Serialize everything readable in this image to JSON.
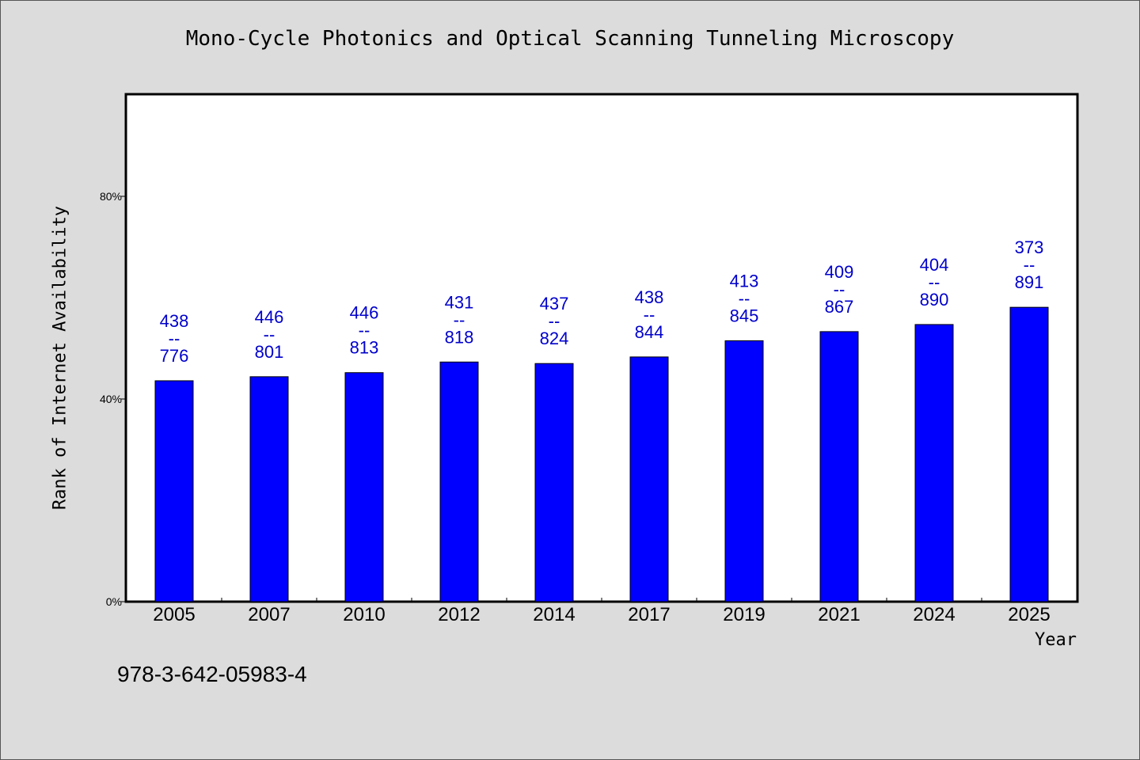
{
  "figure": {
    "title": "Mono-Cycle Photonics and Optical Scanning Tunneling Microscopy",
    "footer_text": "978-3-642-05983-4"
  },
  "chart_data": {
    "type": "bar",
    "title": "Mono-Cycle Photonics and Optical Scanning Tunneling Microscopy",
    "xlabel": "Year",
    "ylabel": "Rank of Internet Availability",
    "categories": [
      "2005",
      "2007",
      "2010",
      "2012",
      "2014",
      "2017",
      "2019",
      "2021",
      "2024",
      "2025"
    ],
    "values": [
      43.6,
      44.4,
      45.2,
      47.3,
      47.0,
      48.3,
      51.5,
      53.3,
      54.7,
      58.1
    ],
    "data_labels": [
      [
        "438",
        "--",
        "776"
      ],
      [
        "446",
        "--",
        "801"
      ],
      [
        "446",
        "--",
        "813"
      ],
      [
        "431",
        "--",
        "818"
      ],
      [
        "437",
        "--",
        "824"
      ],
      [
        "438",
        "--",
        "844"
      ],
      [
        "413",
        "--",
        "845"
      ],
      [
        "409",
        "--",
        "867"
      ],
      [
        "404",
        "--",
        "890"
      ],
      [
        "373",
        "--",
        "891"
      ]
    ],
    "y_ticks": [
      {
        "value": 0,
        "label": "0%"
      },
      {
        "value": 40,
        "label": "40%"
      },
      {
        "value": 80,
        "label": "80%"
      }
    ],
    "ylim": [
      0,
      100
    ],
    "grid": false,
    "legend": "none",
    "colors": {
      "bar": "#0000ff",
      "label": "#0000cc",
      "plot_bg": "#ffffff",
      "page_bg": "#dcdcdc"
    }
  }
}
